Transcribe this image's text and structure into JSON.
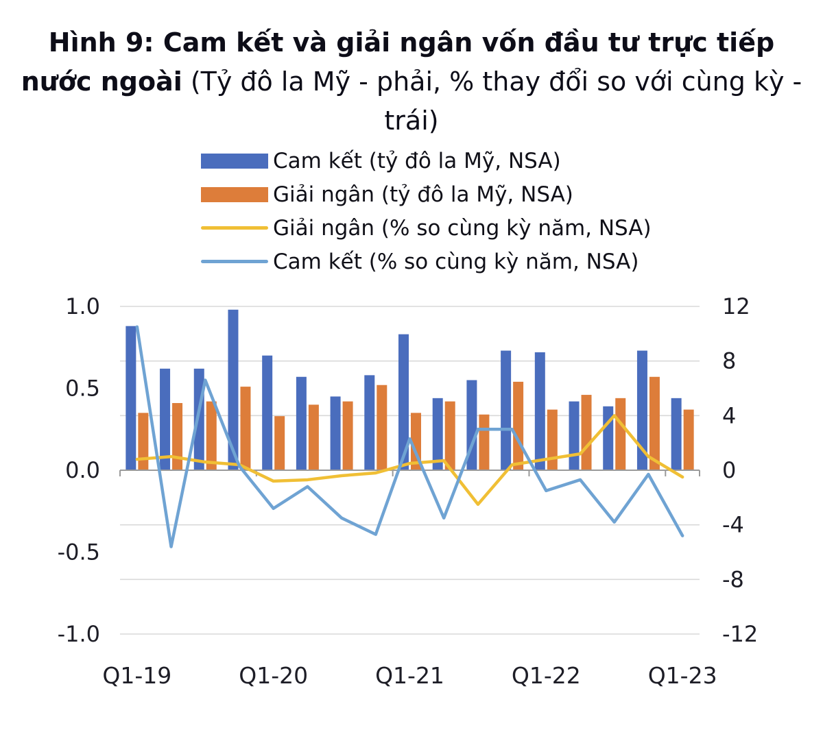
{
  "title": {
    "bold": "Hình 9: Cam kết và giải ngân vốn đầu tư trực tiếp nước ngoài",
    "normal": " (Tỷ đô la Mỹ - phải, % thay đổi so với cùng kỳ - trái)"
  },
  "legend": {
    "position": "top-center-vertical",
    "items": [
      {
        "label": "Cam kết (tỷ đô la Mỹ, NSA)",
        "swatch": "bar",
        "color": "#4a6dbd"
      },
      {
        "label": "Giải ngân (tỷ đô la Mỹ, NSA)",
        "swatch": "bar",
        "color": "#dd7d3a"
      },
      {
        "label": "Giải ngân (% so cùng kỳ năm, NSA)",
        "swatch": "line",
        "color": "#f0bf35"
      },
      {
        "label": "Cam kết (% so cùng kỳ năm, NSA)",
        "swatch": "line",
        "color": "#6fa3d3"
      }
    ]
  },
  "chart_data": {
    "type": "combo-bar-line",
    "categories": [
      "Q1-19",
      "Q2-19",
      "Q3-19",
      "Q4-19",
      "Q1-20",
      "Q2-20",
      "Q3-20",
      "Q4-20",
      "Q1-21",
      "Q2-21",
      "Q3-21",
      "Q4-21",
      "Q1-22",
      "Q2-22",
      "Q3-22",
      "Q4-22",
      "Q1-23"
    ],
    "series": [
      {
        "name": "Cam kết (tỷ đô la Mỹ, NSA)",
        "type": "bar",
        "axis": "left",
        "color": "#4a6dbd",
        "values": [
          0.88,
          0.62,
          0.62,
          0.98,
          0.7,
          0.57,
          0.45,
          0.58,
          0.83,
          0.44,
          0.55,
          0.73,
          0.72,
          0.42,
          0.39,
          0.73,
          0.44
        ]
      },
      {
        "name": "Giải ngân (tỷ đô la Mỹ, NSA)",
        "type": "bar",
        "axis": "left",
        "color": "#dd7d3a",
        "values": [
          0.35,
          0.41,
          0.42,
          0.51,
          0.33,
          0.4,
          0.42,
          0.52,
          0.35,
          0.42,
          0.34,
          0.54,
          0.37,
          0.46,
          0.44,
          0.57,
          0.37
        ]
      },
      {
        "name": "Giải ngân (% so cùng kỳ năm, NSA)",
        "type": "line",
        "axis": "right",
        "color": "#f0bf35",
        "values": [
          0.8,
          1.0,
          0.6,
          0.4,
          -0.8,
          -0.7,
          -0.4,
          -0.2,
          0.5,
          0.7,
          -2.5,
          0.4,
          0.8,
          1.2,
          4.0,
          1.0,
          -0.5
        ]
      },
      {
        "name": "Cam kết (% so cùng kỳ năm, NSA)",
        "type": "line",
        "axis": "right",
        "color": "#6fa3d3",
        "values": [
          10.5,
          -5.6,
          6.6,
          0.3,
          -2.8,
          -1.2,
          -3.5,
          -4.7,
          2.3,
          -3.5,
          3.0,
          3.0,
          -1.5,
          -0.7,
          -3.8,
          -0.3,
          -4.8
        ]
      }
    ],
    "left_axis": {
      "min": -1,
      "max": 1,
      "ticks": [
        "1.0",
        "0.5",
        "0.0",
        "-0.5",
        "-1.0"
      ]
    },
    "right_axis": {
      "min": -12,
      "max": 12,
      "ticks": [
        "12",
        "8",
        "4",
        "0",
        "-4",
        "-8",
        "-12"
      ]
    },
    "x_tick_labels": [
      "Q1-19",
      "Q1-20",
      "Q1-21",
      "Q1-22",
      "Q1-23"
    ],
    "x_tick_positions": [
      0,
      4,
      8,
      12,
      16
    ],
    "grid": "horizontal-on",
    "grid_color": "#d9d9d9",
    "zero_line_color": "#9a9a9a"
  }
}
